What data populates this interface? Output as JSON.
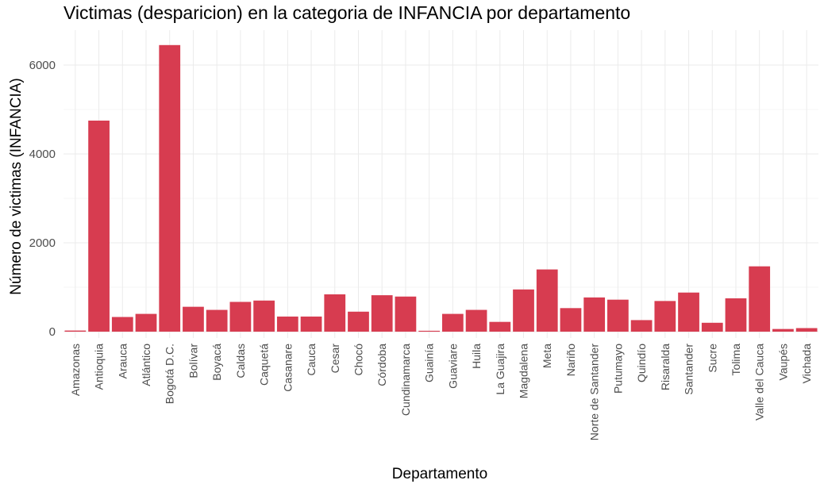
{
  "chart_data": {
    "type": "bar",
    "title": "Victimas (desparicion) en la categoria de INFANCIA por departamento",
    "xlabel": "Departamento",
    "ylabel": "Número de victimas (INFANCIA)",
    "ylim": [
      0,
      6800
    ],
    "yticks": [
      0,
      2000,
      4000,
      6000
    ],
    "grid": true,
    "legend": "none",
    "bar_color": "#d73c50",
    "categories": [
      "Amazonas",
      "Antioquia",
      "Arauca",
      "Atlántico",
      "Bogotá D.C.",
      "Bolívar",
      "Boyacá",
      "Caldas",
      "Caquetá",
      "Casanare",
      "Cauca",
      "Cesar",
      "Chocó",
      "Córdoba",
      "Cundinamarca",
      "Guainía",
      "Guaviare",
      "Huila",
      "La Guajira",
      "Magdalena",
      "Meta",
      "Nariño",
      "Norte de Santander",
      "Putumayo",
      "Quindío",
      "Risaralda",
      "Santander",
      "Sucre",
      "Tolima",
      "Valle del Cauca",
      "Vaupés",
      "Vichada"
    ],
    "values": [
      25,
      4750,
      330,
      400,
      6450,
      560,
      490,
      670,
      700,
      340,
      340,
      840,
      450,
      820,
      790,
      20,
      400,
      490,
      220,
      950,
      1400,
      530,
      770,
      720,
      260,
      690,
      880,
      200,
      750,
      1470,
      60,
      80
    ]
  }
}
